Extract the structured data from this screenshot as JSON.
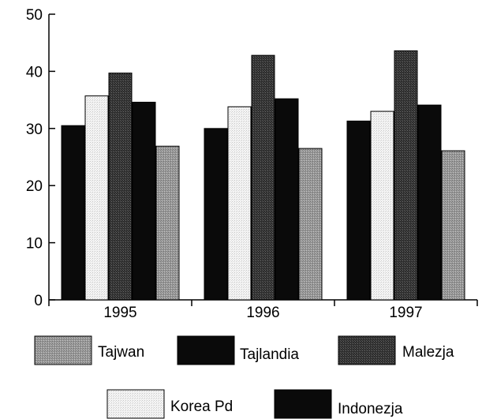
{
  "chart_data": {
    "type": "bar",
    "categories": [
      "1995",
      "1996",
      "1997"
    ],
    "ylim": [
      0,
      50
    ],
    "yticks": [
      0,
      10,
      20,
      30,
      40,
      50
    ],
    "grid": false,
    "legend_placement": "bottom",
    "series": [
      {
        "name": "Tajlandia",
        "values": [
          30.5,
          30.0,
          31.3
        ],
        "color": "#0a0a0a"
      },
      {
        "name": "Korea Pd",
        "values": [
          35.7,
          33.8,
          33.0
        ],
        "color": "#ececec"
      },
      {
        "name": "Malezja",
        "values": [
          39.7,
          42.8,
          43.6
        ],
        "color": "#3a3a3a"
      },
      {
        "name": "Indonezja",
        "values": [
          34.6,
          35.2,
          34.1
        ],
        "color": "#0a0a0a"
      },
      {
        "name": "Tajwan",
        "values": [
          26.9,
          26.5,
          26.1
        ],
        "color": "#9a9a9a"
      }
    ],
    "legend_order": [
      "Tajwan",
      "Tajlandia",
      "Malezja",
      "Korea Pd",
      "Indonezja"
    ]
  }
}
